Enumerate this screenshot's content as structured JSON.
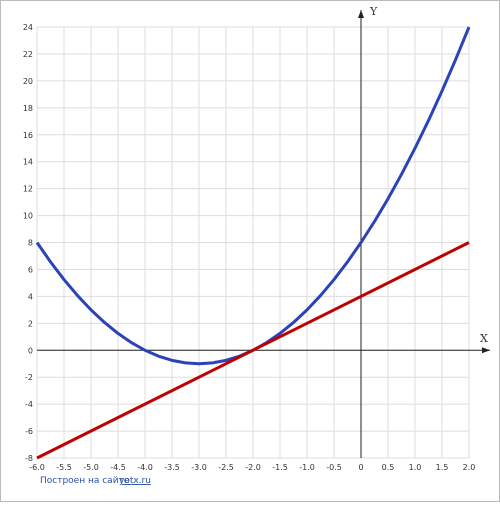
{
  "chart_data": {
    "type": "line",
    "x_label": "X",
    "y_label": "Y",
    "series": [
      {
        "color": "#2a43b8",
        "x": [
          -6,
          -5.75,
          -5.5,
          -5.25,
          -5,
          -4.75,
          -4.5,
          -4.25,
          -4,
          -3.75,
          -3.5,
          -3.25,
          -3,
          -2.75,
          -2.5,
          -2.25,
          -2,
          -1.75,
          -1.5,
          -1.25,
          -1,
          -0.75,
          -0.5,
          -0.25,
          0,
          0.25,
          0.5,
          0.75,
          1,
          1.25,
          1.5,
          1.75,
          2
        ],
        "values": [
          8,
          6.5625,
          5.25,
          4.0625,
          3,
          2.0625,
          1.25,
          0.5625,
          0,
          -0.4375,
          -0.75,
          -0.9375,
          -1,
          -0.9375,
          -0.75,
          -0.4375,
          0,
          0.5625,
          1.25,
          2.0625,
          3,
          4.0625,
          5.25,
          6.5625,
          8,
          9.5625,
          11.25,
          13.0625,
          15,
          17.0625,
          19.25,
          21.5625,
          24
        ]
      },
      {
        "color": "#c00000",
        "x": [
          -6,
          2
        ],
        "values": [
          -8,
          8
        ]
      }
    ],
    "xlim": [
      -6,
      2
    ],
    "xticks": [
      {
        "value": -6,
        "label": "-6.0"
      },
      -5.5,
      {
        "value": -5,
        "label": "-5.0"
      },
      -4.5,
      {
        "value": -4,
        "label": "-4.0"
      },
      -3.5,
      {
        "value": -3,
        "label": "-3.0"
      },
      -2.5,
      {
        "value": -2,
        "label": "-2.0"
      },
      -1.5,
      {
        "value": -1,
        "label": "-1.0"
      },
      -0.5,
      0,
      0.5,
      {
        "value": 1,
        "label": "1.0"
      },
      1.5,
      {
        "value": 2,
        "label": "2.0"
      }
    ],
    "ylim": [
      -8,
      24
    ],
    "yticks": [
      -8,
      -6,
      -4,
      -2,
      0,
      2,
      4,
      6,
      8,
      10,
      12,
      14,
      16,
      18,
      20,
      22,
      24
    ],
    "grid": true
  },
  "footer": {
    "text": "Построен на сайте",
    "link": "yotx.ru"
  }
}
